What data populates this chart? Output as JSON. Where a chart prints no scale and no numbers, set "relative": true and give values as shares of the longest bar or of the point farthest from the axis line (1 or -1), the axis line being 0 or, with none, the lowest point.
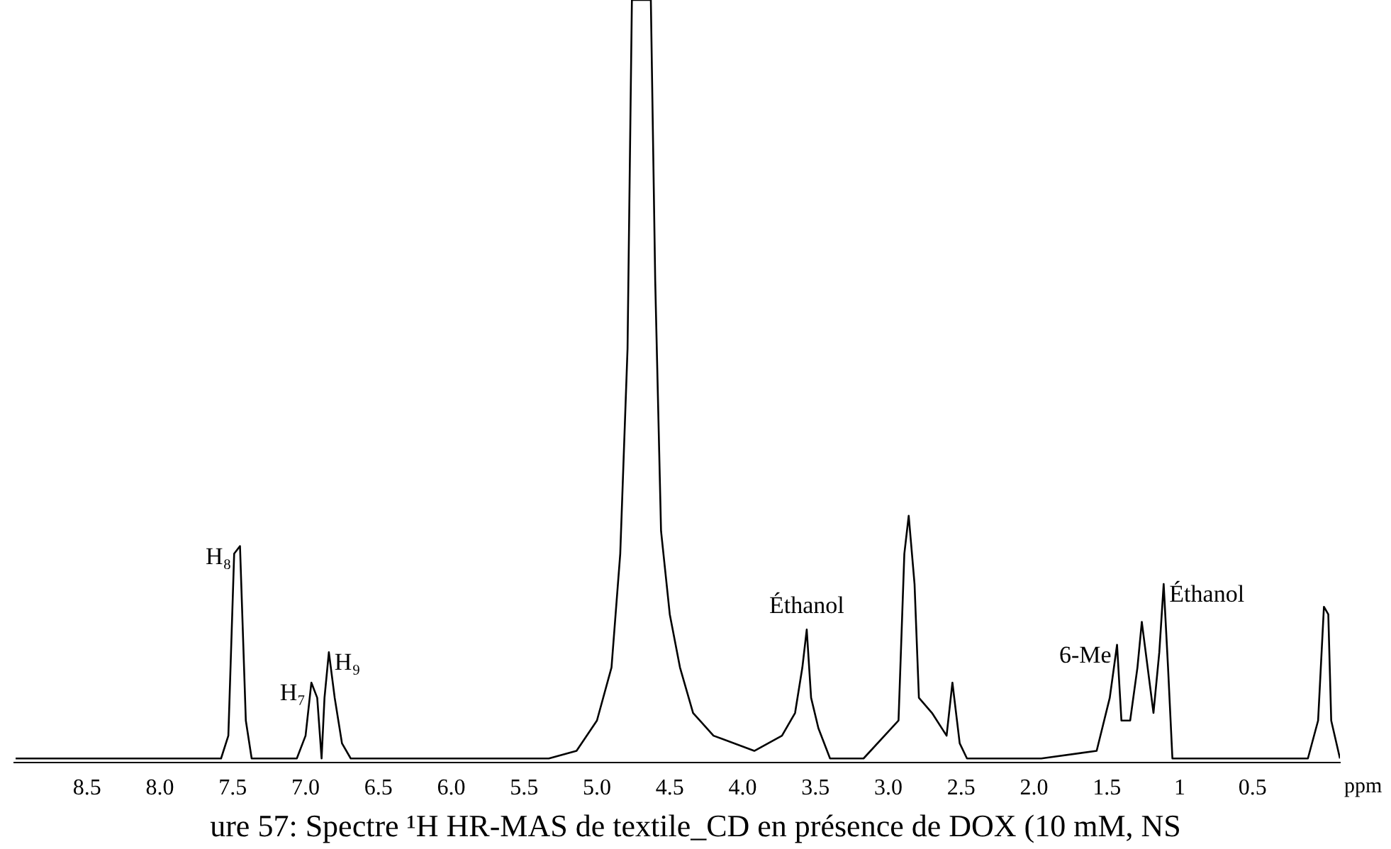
{
  "chart_data": {
    "type": "line",
    "relative": true,
    "xlabel": "ppm",
    "xlim": [
      9.0,
      -0.1
    ],
    "xticks": [
      8.5,
      {
        "value": 8,
        "label": "8.0"
      },
      7.5,
      {
        "value": 7,
        "label": "7.0"
      },
      6.5,
      {
        "value": 6,
        "label": "6.0"
      },
      5.5,
      {
        "value": 5,
        "label": "5.0"
      },
      4.5,
      {
        "value": 4,
        "label": "4.0"
      },
      3.5,
      {
        "value": 3,
        "label": "3.0"
      },
      2.5,
      {
        "value": 2,
        "label": "2.0"
      },
      1.5,
      1,
      0.5
    ],
    "grid": false,
    "legend": false,
    "marker": "none",
    "tick_labels": "x",
    "series": [
      {
        "color": "#000000",
        "x": [
          8.99,
          8.52,
          7.96,
          7.58,
          7.53,
          7.49,
          7.45,
          7.41,
          7.37,
          7.06,
          7.0,
          6.96,
          6.92,
          6.89,
          6.87,
          6.84,
          6.8,
          6.75,
          6.69,
          6.27,
          5.8,
          5.33,
          5.14,
          5.0,
          4.9,
          4.84,
          4.79,
          4.76,
          4.63,
          4.6,
          4.56,
          4.5,
          4.43,
          4.34,
          4.2,
          3.92,
          3.73,
          3.64,
          3.59,
          3.56,
          3.53,
          3.48,
          3.4,
          3.17,
          2.93,
          2.89,
          2.86,
          2.82,
          2.79,
          2.7,
          2.6,
          2.56,
          2.51,
          2.46,
          1.95,
          1.57,
          1.48,
          1.43,
          1.4,
          1.34,
          1.29,
          1.26,
          1.22,
          1.18,
          1.14,
          1.11,
          1.08,
          1.05,
          0.63,
          0.12,
          0.05,
          0.01,
          -0.02,
          -0.04,
          -0.1
        ],
        "values": [
          0,
          0,
          0,
          0,
          0.03,
          0.27,
          0.28,
          0.05,
          0,
          0,
          0.03,
          0.1,
          0.08,
          0,
          0.08,
          0.14,
          0.08,
          0.02,
          0,
          0,
          0,
          0,
          0.01,
          0.05,
          0.12,
          0.27,
          0.54,
          1,
          1,
          0.63,
          0.3,
          0.19,
          0.12,
          0.06,
          0.03,
          0.01,
          0.03,
          0.06,
          0.12,
          0.17,
          0.08,
          0.04,
          0,
          0,
          0.05,
          0.27,
          0.32,
          0.23,
          0.08,
          0.06,
          0.03,
          0.1,
          0.02,
          0,
          0,
          0.01,
          0.08,
          0.15,
          0.05,
          0.05,
          0.12,
          0.18,
          0.12,
          0.06,
          0.14,
          0.23,
          0.12,
          0,
          0,
          0,
          0.05,
          0.2,
          0.19,
          0.05,
          0
        ]
      }
    ],
    "annotations": [
      {
        "text": "H₈",
        "x": 7.47,
        "y": 0.28
      },
      {
        "text": "H₇",
        "x": 6.96,
        "y": 0.1
      },
      {
        "text": "H₉",
        "x": 6.84,
        "y": 0.14
      },
      {
        "text": "Éthanol",
        "x": 3.56,
        "y": 0.17
      },
      {
        "text": "6-Me",
        "x": 1.43,
        "y": 0.15
      },
      {
        "text": "Éthanol",
        "x": 1.11,
        "y": 0.23
      },
      "ure 57: Spectre ¹H HR-MAS de textile_CD en présence de DOX (10 mM, NS"
    ]
  }
}
